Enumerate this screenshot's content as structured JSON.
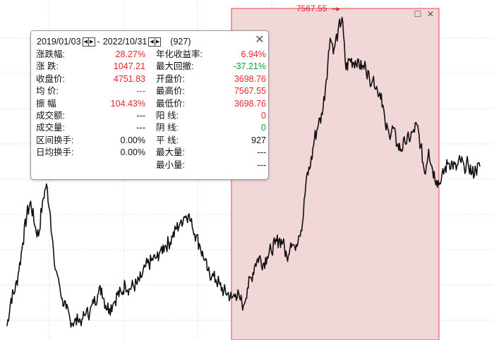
{
  "chart_data": {
    "type": "line",
    "series": [
      {
        "values": [
          3100,
          3500,
          3600,
          3900,
          4300,
          4700,
          4900,
          4550,
          4400,
          4900,
          5150,
          4700,
          4000,
          3800,
          3500,
          3350,
          3200,
          3150,
          3180,
          3200,
          3270,
          3300,
          3430,
          3550,
          3650,
          3400,
          3350,
          3430,
          3550,
          3580,
          3700,
          3640,
          3680,
          3700,
          3800,
          3950,
          4000,
          4050,
          4100,
          4200,
          4250,
          4300,
          4380,
          4500,
          4600,
          4680,
          4700,
          4530,
          4400,
          4250,
          4050,
          3900,
          3820,
          3770,
          3700,
          3600,
          3580,
          3500,
          3560,
          3510,
          3400,
          3650,
          3800,
          4000,
          4100,
          4000,
          4100,
          4200,
          4280,
          4350,
          4300,
          4100,
          4300,
          4250,
          4400,
          4600,
          5250,
          5400,
          5800,
          6000,
          6150,
          6650,
          7250,
          7100,
          7350,
          7550,
          6800,
          6950,
          6900,
          6950,
          6800,
          6850,
          6650,
          6700,
          6500,
          6450,
          6000,
          5850,
          5950,
          5700,
          5650,
          5750,
          5800,
          5900,
          6000,
          5700,
          5300,
          5650,
          5350,
          5200,
          5150,
          5350,
          5450,
          5450,
          5350,
          5500,
          5400,
          5450,
          5300,
          5350,
          5400
        ]
      }
    ],
    "ylim": [
      2900,
      7800
    ]
  },
  "selection": {
    "fill": "#f2d7d9",
    "border": "#e8434c",
    "peak_label": "7567.55"
  },
  "popup": {
    "start_date": "2019/01/03",
    "separator": "-",
    "end_date": "2022/10/31",
    "count": "(927)",
    "left_stats": [
      {
        "label": "涨跌幅:",
        "value": "28.27%",
        "color": "red"
      },
      {
        "label": "涨  跌:",
        "value": "1047.21",
        "color": "red"
      },
      {
        "label": "收盘价:",
        "value": "4751.83",
        "color": "red"
      },
      {
        "label": "均  价:",
        "value": "---",
        "color": "red"
      },
      {
        "label": "振  幅",
        "value": "104.43%",
        "color": "red"
      },
      {
        "label": "成交额:",
        "value": "---",
        "color": "black"
      },
      {
        "label": "成交量:",
        "value": "---",
        "color": "black"
      },
      {
        "label": "区间换手:",
        "value": "0.00%",
        "color": "black"
      },
      {
        "label": "日均换手:",
        "value": "0.00%",
        "color": "black"
      }
    ],
    "right_stats": [
      {
        "label": "年化收益率:",
        "value": "6.94%",
        "color": "red"
      },
      {
        "label": "最大回撤:",
        "value": "-37.21%",
        "color": "green"
      },
      {
        "label": "开盘价:",
        "value": "3698.76",
        "color": "red"
      },
      {
        "label": "最高价:",
        "value": "7567.55",
        "color": "red"
      },
      {
        "label": "最低价:",
        "value": "3698.76",
        "color": "red"
      },
      {
        "label": "阳  线:",
        "value": "0",
        "color": "red"
      },
      {
        "label": "阴  线:",
        "value": "0",
        "color": "green"
      },
      {
        "label": "平  线:",
        "value": "927",
        "color": "black"
      },
      {
        "label": "最大量:",
        "value": "---",
        "color": "black"
      },
      {
        "label": "最小量:",
        "value": "---",
        "color": "black"
      }
    ]
  },
  "icons": {
    "window": "window-icon",
    "close": "close-icon",
    "step_left": "step-left-icon",
    "step_right": "step-right-icon"
  }
}
